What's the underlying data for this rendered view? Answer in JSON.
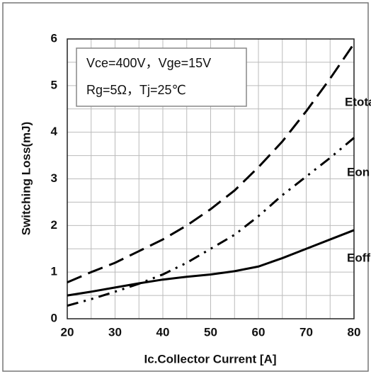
{
  "chart_data": {
    "type": "line",
    "x_label": "Ic.Collector Current [A]",
    "y_label": "Switching Loss(mJ)",
    "annotations": [
      "Vce=400V，Vge=15V",
      "Rg=5Ω，Tj=25℃"
    ],
    "x": [
      20,
      25,
      30,
      35,
      40,
      45,
      50,
      55,
      60,
      65,
      70,
      75,
      80
    ],
    "series": [
      {
        "name": "Etotal",
        "color": "#000000",
        "dash": "dashed",
        "values": [
          0.78,
          1.0,
          1.2,
          1.45,
          1.7,
          2.0,
          2.35,
          2.75,
          3.25,
          3.8,
          4.45,
          5.15,
          5.9
        ]
      },
      {
        "name": "Eon",
        "color": "#000000",
        "dash": "dash-dot-dot",
        "values": [
          0.28,
          0.42,
          0.58,
          0.75,
          0.95,
          1.2,
          1.5,
          1.8,
          2.2,
          2.65,
          3.05,
          3.45,
          3.88
        ]
      },
      {
        "name": "Eoff",
        "color": "#000000",
        "dash": "solid",
        "values": [
          0.5,
          0.58,
          0.67,
          0.76,
          0.84,
          0.9,
          0.95,
          1.02,
          1.12,
          1.3,
          1.5,
          1.7,
          1.9
        ]
      }
    ],
    "xlim": [
      20,
      80
    ],
    "xticks": [
      20,
      30,
      40,
      50,
      60,
      70,
      80
    ],
    "xminor_ticks": [
      25,
      35,
      45,
      55,
      65,
      75
    ],
    "ylim": [
      0,
      6
    ],
    "yticks": [
      0,
      1,
      2,
      3,
      4,
      5,
      6
    ],
    "yminor_ticks": [
      0.5,
      1.5,
      2.5,
      3.5,
      4.5,
      5.5
    ],
    "grid": true
  }
}
